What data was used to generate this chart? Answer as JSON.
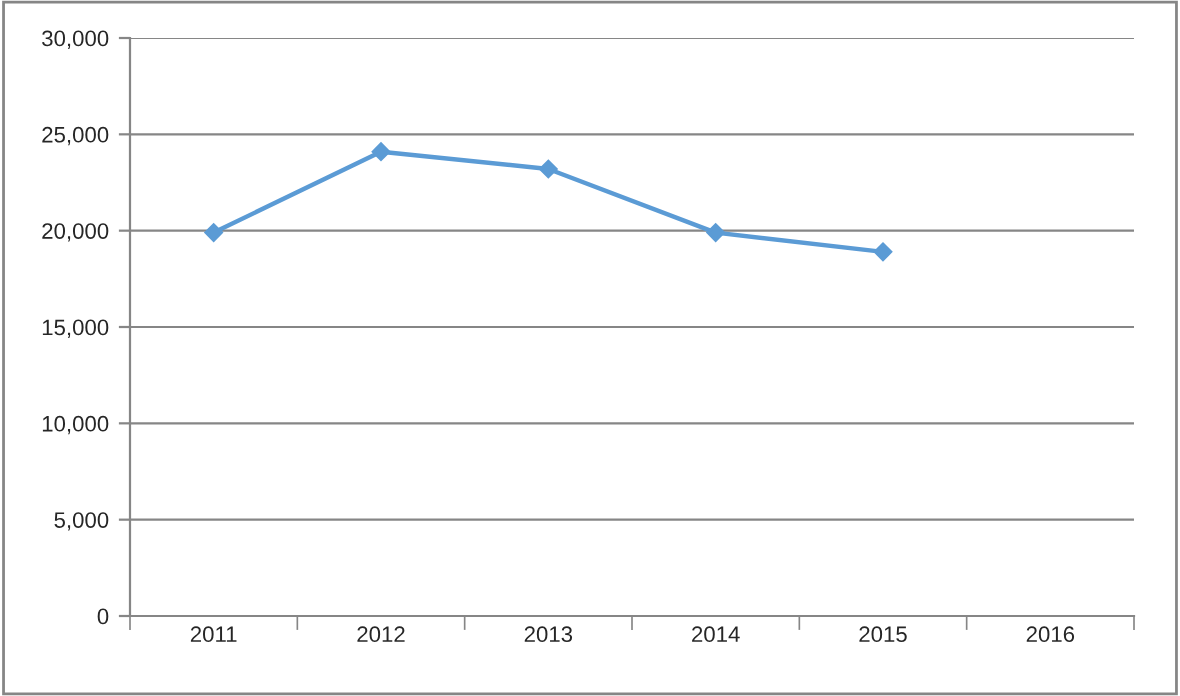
{
  "chart_data": {
    "type": "line",
    "categories": [
      "2011",
      "2012",
      "2013",
      "2014",
      "2015",
      "2016"
    ],
    "series": [
      {
        "color": "#5b9bd5",
        "values": [
          19900,
          24100,
          23200,
          19900,
          18900,
          null
        ]
      }
    ],
    "ylim": [
      0,
      30000
    ],
    "yticks": [
      {
        "value": 0,
        "label": "0"
      },
      {
        "value": 5000,
        "label": "5,000"
      },
      {
        "value": 10000,
        "label": "10,000"
      },
      {
        "value": 15000,
        "label": "15,000"
      },
      {
        "value": 20000,
        "label": "20,000"
      },
      {
        "value": 25000,
        "label": "25,000"
      },
      {
        "value": 30000,
        "label": "30,000"
      }
    ],
    "grid": "y",
    "marker": "diamond",
    "line_style": "solid"
  }
}
